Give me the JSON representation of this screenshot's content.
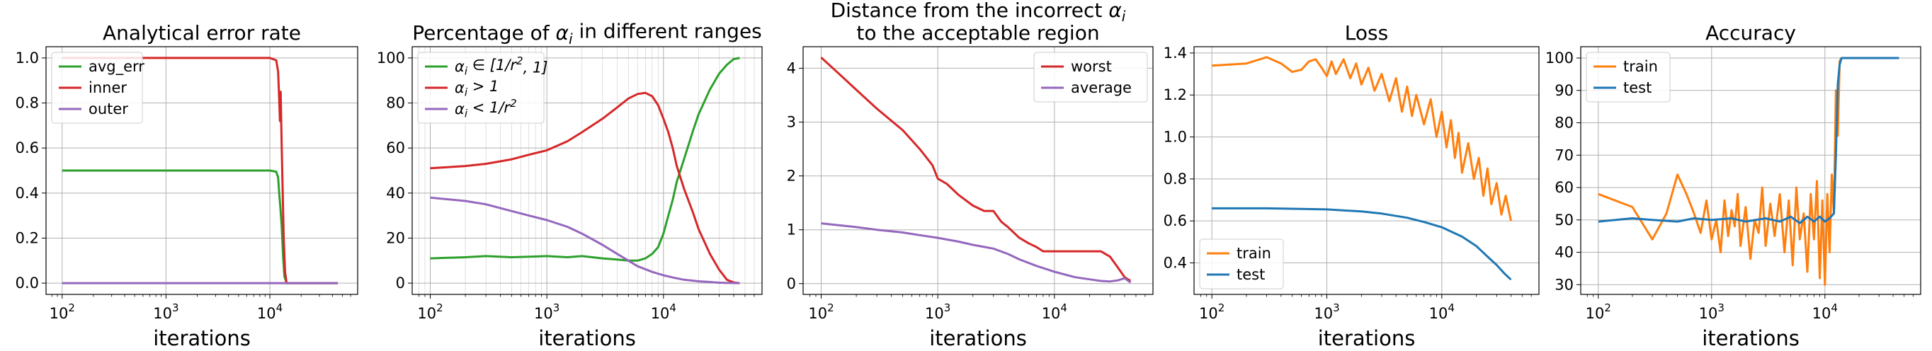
{
  "chart_data": [
    {
      "type": "line",
      "title": [
        "Analytical error rate"
      ],
      "xlabel": "iterations",
      "ylabel": "",
      "xscale": "log",
      "xlim": [
        70,
        70000
      ],
      "ylim": [
        -0.05,
        1.05
      ],
      "xticks": [
        {
          "v": 100,
          "b": "10",
          "e": "2"
        },
        {
          "v": 1000,
          "b": "10",
          "e": "3"
        },
        {
          "v": 10000,
          "b": "10",
          "e": "4"
        }
      ],
      "yticks": [
        {
          "v": 0.0,
          "label": "0.0"
        },
        {
          "v": 0.2,
          "label": "0.2"
        },
        {
          "v": 0.4,
          "label": "0.4"
        },
        {
          "v": 0.6,
          "label": "0.6"
        },
        {
          "v": 0.8,
          "label": "0.8"
        },
        {
          "v": 1.0,
          "label": "1.0"
        }
      ],
      "grid": true,
      "minor_grid": false,
      "legend": "top-left",
      "series": [
        {
          "name": "avg_err",
          "color": "#2ca02c",
          "x": [
            100,
            1000,
            5000,
            10000,
            11500,
            12000,
            12300,
            12600,
            13000,
            13400,
            13800,
            14500,
            20000,
            45000
          ],
          "y": [
            0.5,
            0.5,
            0.5,
            0.5,
            0.495,
            0.47,
            0.4,
            0.34,
            0.25,
            0.12,
            0.03,
            0.0,
            0.0,
            0.0
          ]
        },
        {
          "name": "inner",
          "color": "#d62728",
          "x": [
            100,
            1000,
            5000,
            10000,
            11500,
            12000,
            12300,
            12500,
            12700,
            13000,
            13300,
            13600,
            14000,
            14500,
            20000,
            45000
          ],
          "y": [
            1.0,
            1.0,
            1.0,
            1.0,
            0.99,
            0.94,
            0.82,
            0.72,
            0.85,
            0.6,
            0.4,
            0.2,
            0.05,
            0.0,
            0.0,
            0.0
          ]
        },
        {
          "name": "outer",
          "color": "#9467bd",
          "x": [
            100,
            1000,
            10000,
            45000
          ],
          "y": [
            0.0,
            0.0,
            0.0,
            0.0
          ]
        }
      ]
    },
    {
      "type": "line",
      "title": [
        "Percentage of $\\alpha_i$ in different ranges"
      ],
      "xlabel": "iterations",
      "ylabel": "",
      "xscale": "log",
      "xlim": [
        70,
        70000
      ],
      "ylim": [
        -5,
        105
      ],
      "xticks": [
        {
          "v": 100,
          "b": "10",
          "e": "2"
        },
        {
          "v": 1000,
          "b": "10",
          "e": "3"
        },
        {
          "v": 10000,
          "b": "10",
          "e": "4"
        }
      ],
      "yticks": [
        {
          "v": 0,
          "label": "0"
        },
        {
          "v": 20,
          "label": "20"
        },
        {
          "v": 40,
          "label": "40"
        },
        {
          "v": 60,
          "label": "60"
        },
        {
          "v": 80,
          "label": "80"
        },
        {
          "v": 100,
          "label": "100"
        }
      ],
      "grid": true,
      "minor_grid": true,
      "legend": "top-left",
      "series": [
        {
          "name": "$\\alpha_i \\in [1/r^2, 1]$",
          "color": "#2ca02c",
          "x": [
            100,
            200,
            300,
            500,
            1000,
            1500,
            2000,
            3000,
            4000,
            5000,
            6000,
            7000,
            8000,
            9000,
            10000,
            11000,
            12000,
            13000,
            15000,
            18000,
            20000,
            25000,
            30000,
            35000,
            40000,
            45000
          ],
          "y": [
            11,
            11.5,
            12,
            11.5,
            12,
            11.5,
            12,
            11,
            10.5,
            10,
            10,
            11,
            13,
            16,
            22,
            30,
            37,
            45,
            55,
            68,
            75,
            86,
            93,
            97,
            99.5,
            100
          ]
        },
        {
          "name": "$\\alpha_i > 1$",
          "color": "#d62728",
          "x": [
            100,
            200,
            300,
            500,
            700,
            1000,
            1500,
            2000,
            3000,
            4000,
            5000,
            6000,
            7000,
            8000,
            9000,
            10000,
            11000,
            12000,
            13000,
            15000,
            18000,
            20000,
            25000,
            30000,
            35000,
            40000,
            45000
          ],
          "y": [
            51,
            52,
            53,
            55,
            57,
            59,
            63,
            67,
            73,
            78,
            82,
            84,
            84.5,
            83,
            79,
            73,
            67,
            60,
            52,
            42,
            31,
            24,
            13,
            6,
            1.5,
            0.3,
            0
          ]
        },
        {
          "name": "$\\alpha_i < 1/r^2$",
          "color": "#9467bd",
          "x": [
            100,
            200,
            300,
            500,
            700,
            1000,
            1500,
            2000,
            3000,
            4000,
            5000,
            6000,
            8000,
            10000,
            12000,
            15000,
            20000,
            25000,
            30000,
            35000,
            45000
          ],
          "y": [
            38,
            36.5,
            35,
            32,
            30,
            28,
            25,
            22,
            17,
            13,
            10,
            7.5,
            5,
            3.5,
            2.5,
            1.5,
            0.8,
            0.5,
            0.2,
            0.1,
            0
          ]
        }
      ]
    },
    {
      "type": "line",
      "title": [
        "Distance from the incorrect $\\alpha_i$",
        "to the acceptable region"
      ],
      "xlabel": "iterations",
      "ylabel": "",
      "xscale": "log",
      "xlim": [
        70,
        70000
      ],
      "ylim": [
        -0.2,
        4.4
      ],
      "xticks": [
        {
          "v": 100,
          "b": "10",
          "e": "2"
        },
        {
          "v": 1000,
          "b": "10",
          "e": "3"
        },
        {
          "v": 10000,
          "b": "10",
          "e": "4"
        }
      ],
      "yticks": [
        {
          "v": 0,
          "label": "0"
        },
        {
          "v": 1,
          "label": "1"
        },
        {
          "v": 2,
          "label": "2"
        },
        {
          "v": 3,
          "label": "3"
        },
        {
          "v": 4,
          "label": "4"
        }
      ],
      "grid": true,
      "minor_grid": false,
      "legend": "top-right",
      "series": [
        {
          "name": "worst",
          "color": "#d62728",
          "x": [
            100,
            150,
            200,
            300,
            500,
            700,
            900,
            1000,
            1200,
            1500,
            2000,
            2500,
            3000,
            3500,
            4000,
            5000,
            6000,
            7000,
            8000,
            10000,
            15000,
            20000,
            25000,
            30000,
            35000,
            40000,
            45000
          ],
          "y": [
            4.2,
            3.85,
            3.6,
            3.25,
            2.85,
            2.5,
            2.2,
            1.95,
            1.85,
            1.65,
            1.45,
            1.35,
            1.35,
            1.15,
            1.05,
            0.85,
            0.75,
            0.68,
            0.6,
            0.6,
            0.6,
            0.6,
            0.6,
            0.5,
            0.3,
            0.12,
            0.05
          ]
        },
        {
          "name": "average",
          "color": "#9467bd",
          "x": [
            100,
            200,
            300,
            500,
            700,
            1000,
            1500,
            2000,
            3000,
            4000,
            5000,
            7000,
            10000,
            15000,
            20000,
            25000,
            30000,
            35000,
            40000,
            45000
          ],
          "y": [
            1.12,
            1.05,
            1.0,
            0.95,
            0.9,
            0.85,
            0.78,
            0.72,
            0.65,
            0.55,
            0.45,
            0.33,
            0.22,
            0.12,
            0.08,
            0.05,
            0.04,
            0.06,
            0.1,
            0.02
          ]
        }
      ]
    },
    {
      "type": "line",
      "title": [
        "Loss"
      ],
      "xlabel": "iterations",
      "ylabel": "",
      "xscale": "log",
      "xlim": [
        70,
        70000
      ],
      "ylim": [
        0.25,
        1.43
      ],
      "xticks": [
        {
          "v": 100,
          "b": "10",
          "e": "2"
        },
        {
          "v": 1000,
          "b": "10",
          "e": "3"
        },
        {
          "v": 10000,
          "b": "10",
          "e": "4"
        }
      ],
      "yticks": [
        {
          "v": 0.4,
          "label": "0.4"
        },
        {
          "v": 0.6,
          "label": "0.6"
        },
        {
          "v": 0.8,
          "label": "0.8"
        },
        {
          "v": 1.0,
          "label": "1.0"
        },
        {
          "v": 1.2,
          "label": "1.2"
        },
        {
          "v": 1.4,
          "label": "1.4"
        }
      ],
      "grid": true,
      "minor_grid": false,
      "legend": "bottom-left",
      "series": [
        {
          "name": "train",
          "color": "#ff7f0e",
          "x": [
            100,
            200,
            300,
            400,
            500,
            600,
            700,
            800,
            900,
            1000,
            1100,
            1200,
            1400,
            1600,
            1800,
            2000,
            2300,
            2600,
            3000,
            3500,
            4000,
            4500,
            5000,
            5500,
            6000,
            7000,
            8000,
            9000,
            10000,
            11000,
            12000,
            13000,
            14000,
            15000,
            17000,
            19000,
            21000,
            23000,
            25000,
            27000,
            30000,
            33000,
            36000,
            40000
          ],
          "y": [
            1.34,
            1.35,
            1.38,
            1.35,
            1.31,
            1.32,
            1.36,
            1.37,
            1.33,
            1.29,
            1.36,
            1.3,
            1.37,
            1.28,
            1.35,
            1.25,
            1.33,
            1.22,
            1.3,
            1.17,
            1.28,
            1.12,
            1.24,
            1.1,
            1.2,
            1.06,
            1.18,
            1.0,
            1.12,
            0.95,
            1.08,
            0.9,
            1.02,
            0.83,
            0.97,
            0.8,
            0.9,
            0.72,
            0.85,
            0.68,
            0.78,
            0.63,
            0.72,
            0.6
          ]
        },
        {
          "name": "test",
          "color": "#1f77b4",
          "x": [
            100,
            300,
            1000,
            2000,
            3000,
            5000,
            7000,
            10000,
            15000,
            20000,
            25000,
            30000,
            35000,
            40000
          ],
          "y": [
            0.66,
            0.66,
            0.655,
            0.645,
            0.635,
            0.615,
            0.595,
            0.57,
            0.525,
            0.48,
            0.43,
            0.39,
            0.35,
            0.32
          ]
        }
      ]
    },
    {
      "type": "line",
      "title": [
        "Accuracy"
      ],
      "xlabel": "iterations",
      "ylabel": "",
      "xscale": "log",
      "xlim": [
        70,
        70000
      ],
      "ylim": [
        27,
        103.5
      ],
      "xticks": [
        {
          "v": 100,
          "b": "10",
          "e": "2"
        },
        {
          "v": 1000,
          "b": "10",
          "e": "3"
        },
        {
          "v": 10000,
          "b": "10",
          "e": "4"
        }
      ],
      "yticks": [
        {
          "v": 30,
          "label": "30"
        },
        {
          "v": 40,
          "label": "40"
        },
        {
          "v": 50,
          "label": "50"
        },
        {
          "v": 60,
          "label": "60"
        },
        {
          "v": 70,
          "label": "70"
        },
        {
          "v": 80,
          "label": "80"
        },
        {
          "v": 90,
          "label": "90"
        },
        {
          "v": 100,
          "label": "100"
        }
      ],
      "grid": true,
      "minor_grid": false,
      "legend": "top-left",
      "series": [
        {
          "name": "train",
          "color": "#ff7f0e",
          "x": [
            100,
            200,
            300,
            400,
            500,
            600,
            700,
            800,
            900,
            1000,
            1100,
            1200,
            1300,
            1400,
            1500,
            1600,
            1700,
            1800,
            2000,
            2200,
            2400,
            2600,
            2800,
            3000,
            3300,
            3600,
            4000,
            4400,
            4800,
            5200,
            5600,
            6000,
            6500,
            7000,
            7500,
            8000,
            8500,
            9000,
            9500,
            10000,
            10500,
            11000,
            11500,
            12000,
            12500,
            13000,
            13500,
            14000,
            15000,
            20000,
            30000,
            45000
          ],
          "y": [
            58,
            54,
            44,
            52,
            64,
            58,
            52,
            46,
            56,
            44,
            50,
            40,
            56,
            45,
            53,
            48,
            58,
            42,
            54,
            38,
            50,
            46,
            60,
            42,
            55,
            45,
            58,
            40,
            56,
            36,
            60,
            44,
            52,
            34,
            58,
            44,
            62,
            32,
            56,
            30,
            58,
            40,
            64,
            52,
            90,
            76,
            99,
            100,
            100,
            100,
            100,
            100
          ]
        },
        {
          "name": "test",
          "color": "#1f77b4",
          "x": [
            100,
            200,
            300,
            500,
            700,
            1000,
            1500,
            2000,
            3000,
            4000,
            5000,
            6000,
            7000,
            8000,
            9000,
            10000,
            11000,
            12000,
            12500,
            13000,
            13500,
            14000,
            15000,
            20000,
            30000,
            45000
          ],
          "y": [
            49.5,
            50.5,
            50,
            49.5,
            50.5,
            50,
            50.5,
            49.5,
            50.5,
            49.5,
            51,
            49,
            51,
            49.5,
            51,
            49.5,
            50.5,
            52,
            70,
            92,
            98,
            100,
            100,
            100,
            100,
            100
          ]
        }
      ]
    }
  ]
}
